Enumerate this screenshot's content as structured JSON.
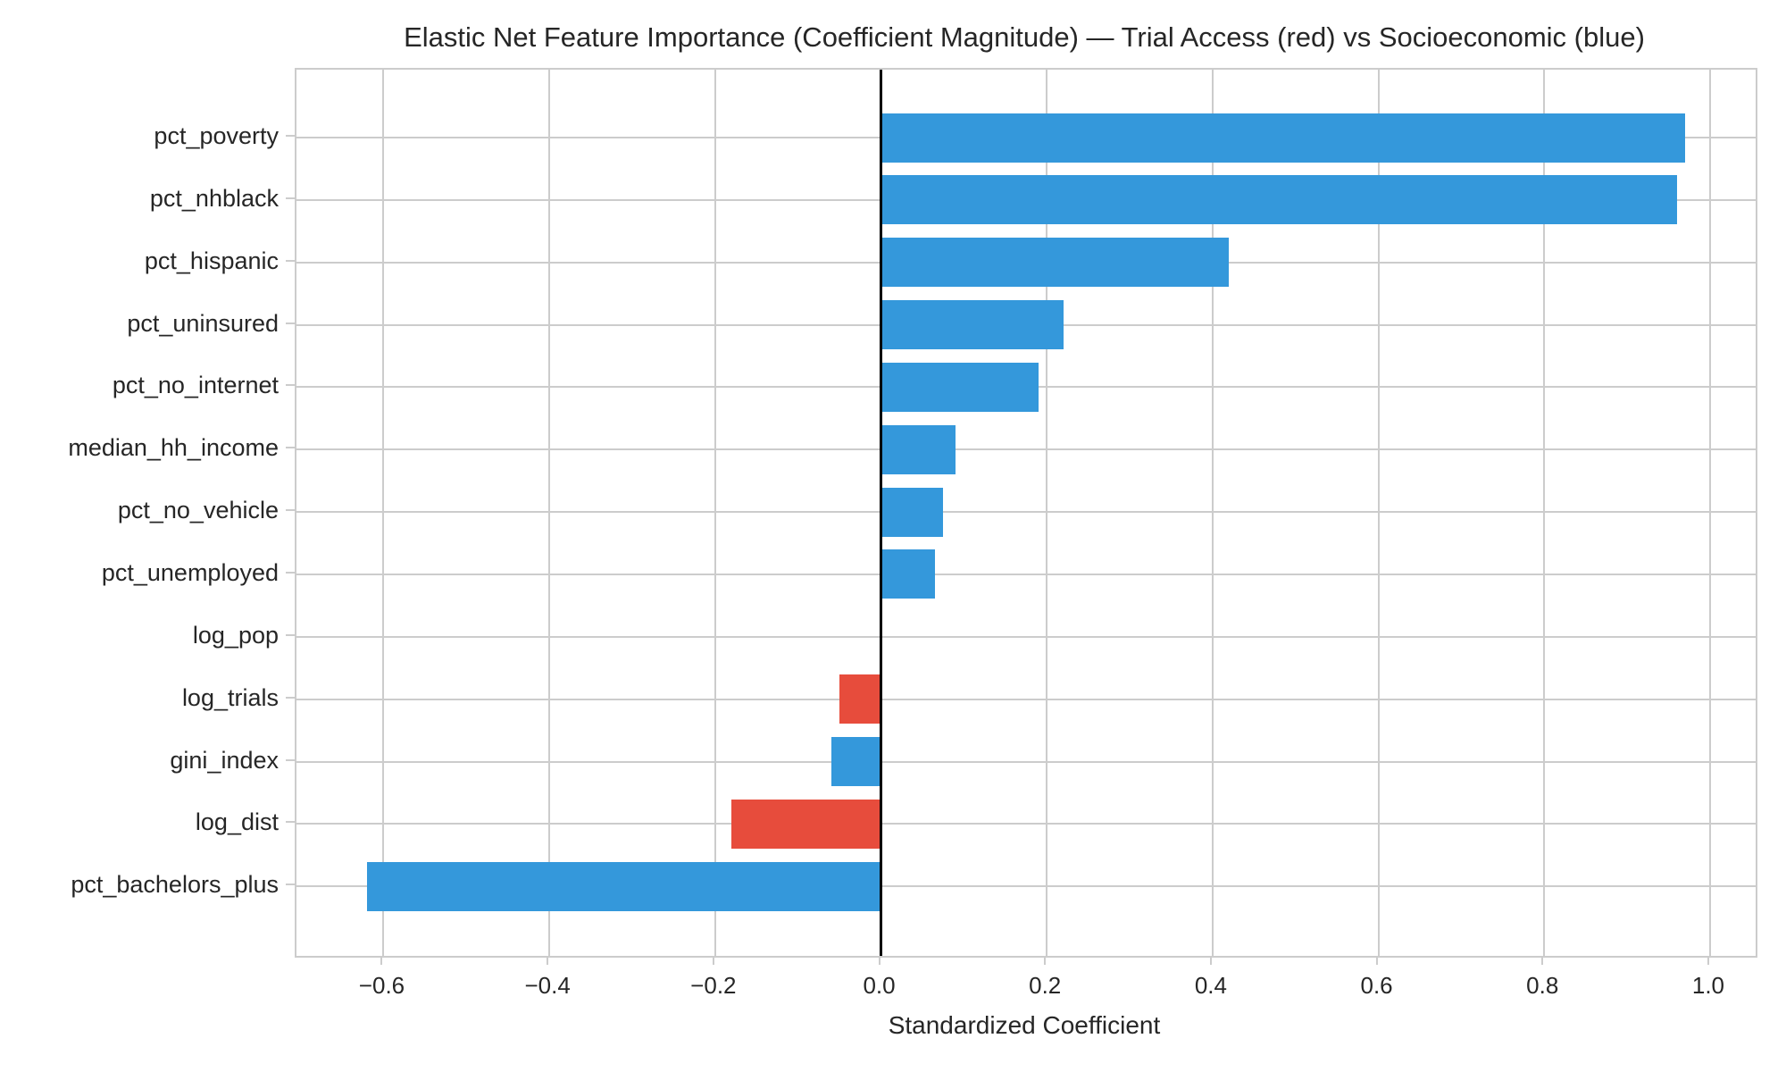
{
  "chart_data": {
    "type": "bar",
    "orientation": "horizontal",
    "title": "Elastic Net Feature Importance (Coefficient Magnitude) — Trial Access (red) vs Socioeconomic (blue)",
    "xlabel": "Standardized Coefficient",
    "ylabel": "",
    "categories": [
      "pct_poverty",
      "pct_nhblack",
      "pct_hispanic",
      "pct_uninsured",
      "pct_no_internet",
      "median_hh_income",
      "pct_no_vehicle",
      "pct_unemployed",
      "log_pop",
      "log_trials",
      "gini_index",
      "log_dist",
      "pct_bachelors_plus"
    ],
    "values": [
      0.97,
      0.96,
      0.42,
      0.22,
      0.19,
      0.09,
      0.075,
      0.065,
      0.0,
      -0.05,
      -0.06,
      -0.18,
      -0.62
    ],
    "bar_groups": [
      "socioeconomic",
      "socioeconomic",
      "socioeconomic",
      "socioeconomic",
      "socioeconomic",
      "socioeconomic",
      "socioeconomic",
      "socioeconomic",
      "socioeconomic",
      "trial_access",
      "socioeconomic",
      "trial_access",
      "socioeconomic"
    ],
    "group_colors": {
      "trial_access": "#e74c3c",
      "socioeconomic": "#3498db"
    },
    "xticks": [
      -0.6,
      -0.4,
      -0.2,
      0.0,
      0.2,
      0.4,
      0.6,
      0.8,
      1.0
    ],
    "xtick_labels": [
      "−0.6",
      "−0.4",
      "−0.2",
      "0.0",
      "0.2",
      "0.4",
      "0.6",
      "0.8",
      "1.0"
    ],
    "xlim": [
      -0.705,
      1.055
    ],
    "grid": true,
    "legend_position": "none",
    "zero_line_color": "#000000",
    "grid_color": "#cccccc",
    "text_color": "#262626",
    "background_color": "#ffffff"
  }
}
